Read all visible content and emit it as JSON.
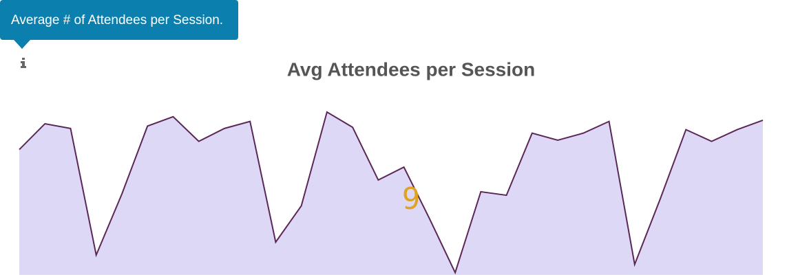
{
  "chart_data": {
    "type": "area",
    "title": "Avg Attendees per Session",
    "tooltip": "Average # of Attendees per Session.",
    "summary_value": "9",
    "values": [
      10.7,
      12.9,
      12.5,
      1.7,
      6.9,
      12.7,
      13.5,
      11.4,
      12.5,
      13.1,
      2.8,
      5.9,
      13.9,
      12.6,
      8.1,
      9.2,
      4.8,
      0.2,
      7.1,
      6.8,
      12.1,
      11.5,
      12.1,
      13.1,
      0.9,
      6.5,
      12.4,
      11.4,
      12.4,
      13.2
    ],
    "color": "#5b2756",
    "fill": "#ddd8f6",
    "summary_color": "#dfa321",
    "tooltip_color": "#0b80ae"
  }
}
